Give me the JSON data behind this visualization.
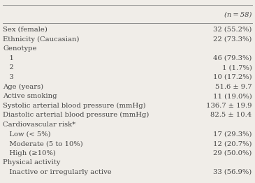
{
  "header_col": "(n = 58)",
  "rows": [
    {
      "label": "Sex (female)",
      "value": "32 (55.2%)",
      "indent": 0
    },
    {
      "label": "Ethnicity (Caucasian)",
      "value": "22 (73.3%)",
      "indent": 0
    },
    {
      "label": "Genotype",
      "value": "",
      "indent": 0
    },
    {
      "label": "   1",
      "value": "46 (79.3%)",
      "indent": 0
    },
    {
      "label": "   2",
      "value": "1 (1.7%)",
      "indent": 0
    },
    {
      "label": "   3",
      "value": "10 (17.2%)",
      "indent": 0
    },
    {
      "label": "Age (years)",
      "value": "51.6 ± 9.7",
      "indent": 0
    },
    {
      "label": "Active smoking",
      "value": "11 (19.0%)",
      "indent": 0
    },
    {
      "label": "Systolic arterial blood pressure (mmHg)",
      "value": "136.7 ± 19.9",
      "indent": 0
    },
    {
      "label": "Diastolic arterial blood pressure (mmHg)",
      "value": "82.5 ± 10.4",
      "indent": 0
    },
    {
      "label": "Cardiovascular risk*",
      "value": "",
      "indent": 0
    },
    {
      "label": "   Low (< 5%)",
      "value": "17 (29.3%)",
      "indent": 0
    },
    {
      "label": "   Moderate (5 to 10%)",
      "value": "12 (20.7%)",
      "indent": 0
    },
    {
      "label": "   High (≥10%)",
      "value": "29 (50.0%)",
      "indent": 0
    },
    {
      "label": "Physical activity",
      "value": "",
      "indent": 0
    },
    {
      "label": "   Inactive or irregularly active",
      "value": "33 (56.9%)",
      "indent": 0
    }
  ],
  "bg_color": "#f0ede8",
  "text_color": "#444444",
  "font_size": 7.2,
  "line_color": "#888888"
}
